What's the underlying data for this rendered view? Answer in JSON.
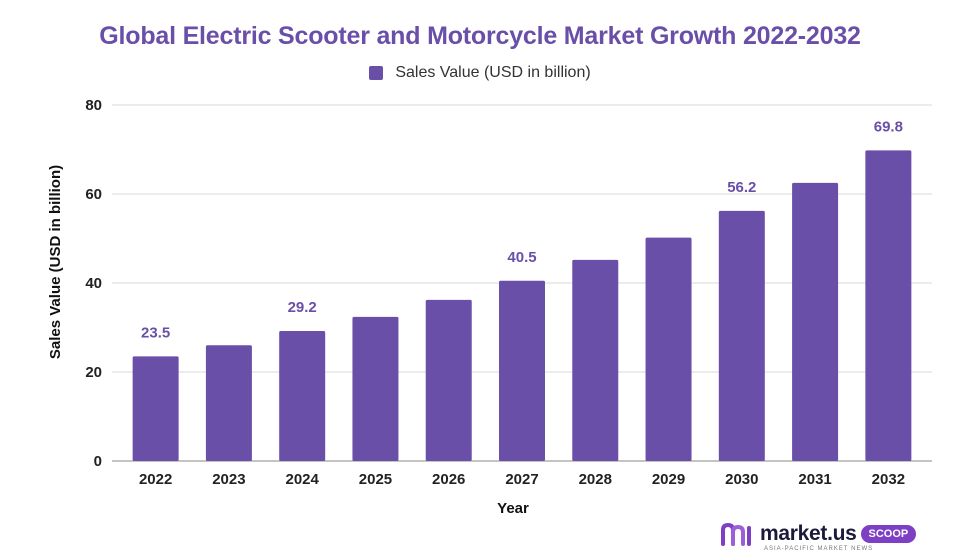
{
  "chart_data": {
    "type": "bar",
    "title": "Global Electric Scooter and Motorcycle Market Growth 2022-2032",
    "categories": [
      "2022",
      "2023",
      "2024",
      "2025",
      "2026",
      "2027",
      "2028",
      "2029",
      "2030",
      "2031",
      "2032"
    ],
    "series": [
      {
        "name": "Sales Value (USD in billion)",
        "values": [
          23.5,
          26.0,
          29.2,
          32.4,
          36.2,
          40.5,
          45.2,
          50.2,
          56.2,
          62.5,
          69.8
        ]
      }
    ],
    "data_labels": [
      "23.5",
      "",
      "29.2",
      "",
      "",
      "40.5",
      "",
      "",
      "56.2",
      "",
      "69.8"
    ],
    "xlabel": "Year",
    "ylabel": "Sales Value (USD in billion)",
    "ylim": [
      0,
      80
    ],
    "yticks": [
      0,
      20,
      40,
      60,
      80
    ],
    "grid": true,
    "legend_position": "top-center",
    "bar_color": "#6a4fa8",
    "label_color": "#6a4fa8"
  },
  "branding": {
    "name": "market.us",
    "badge": "SCOOP",
    "tagline": "ASIA-PACIFIC MARKET NEWS",
    "icon": "market-us-logo-icon"
  }
}
